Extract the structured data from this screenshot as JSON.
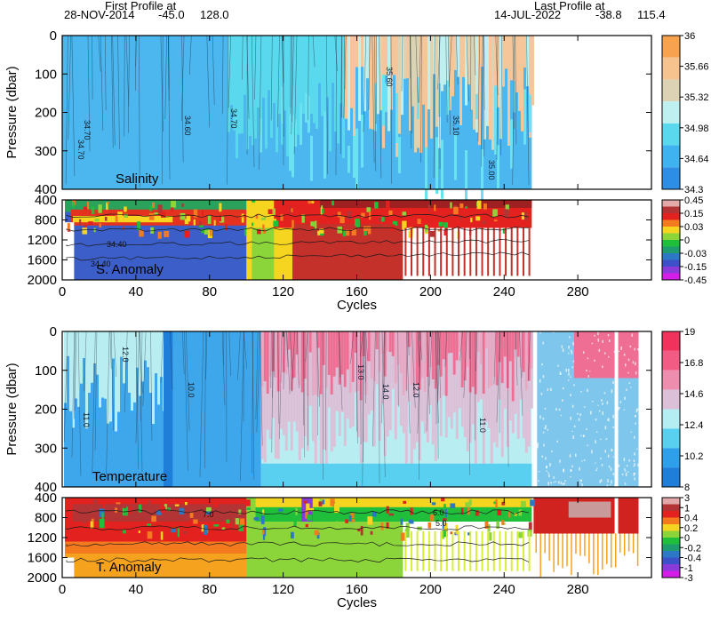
{
  "header": {
    "first_profile_label": "First Profile at",
    "first_profile_date": "28-NOV-2014",
    "first_profile_lat": "-45.0",
    "first_profile_lon": "128.0",
    "last_profile_label": "Last Profile at",
    "last_profile_date": "14-JUL-2022",
    "last_profile_lat": "-38.8",
    "last_profile_lon": "115.4"
  },
  "chart_data": [
    {
      "type": "heatmap",
      "panel_label": "Salinity",
      "ylabel": "Pressure (dbar)",
      "yticks": [
        0,
        100,
        200,
        300,
        400
      ],
      "ylim": [
        400,
        0
      ],
      "xlim": [
        0,
        320
      ],
      "cycles_with_data": [
        0,
        255
      ],
      "colorbar": {
        "labels": [
          "36",
          "35.66",
          "35.32",
          "34.98",
          "34.64",
          "34.3"
        ],
        "colors": [
          "#f7a24f",
          "#f6c28e",
          "#dcd3b4",
          "#bff0f0",
          "#5ad8ee",
          "#3fb2f0",
          "#2e8ee6"
        ]
      },
      "contour_labels": [
        "34.70",
        "34.70",
        "34.60",
        "34.70",
        "35.60",
        "35.10",
        "35.00"
      ]
    },
    {
      "type": "heatmap",
      "panel_label": "S. Anomaly",
      "yticks": [
        400,
        800,
        1200,
        1600,
        2000
      ],
      "ylim": [
        2000,
        400
      ],
      "xlim": [
        0,
        320
      ],
      "contour_labels": [
        "34.40",
        "34.40"
      ],
      "colorbar": {
        "labels": [
          "0.45",
          "0.15",
          "0.03",
          "0",
          "-0.03",
          "-0.15",
          "-0.45"
        ],
        "colors": [
          "#e3a9a9",
          "#b33434",
          "#e3221f",
          "#f47a20",
          "#f5d51f",
          "#8bd43a",
          "#1fbf3c",
          "#1f9c6d",
          "#2c78c4",
          "#3c50c8",
          "#8a3ad8",
          "#d41ee8"
        ]
      }
    },
    {
      "type": "heatmap",
      "panel_label": "Temperature",
      "ylabel": "Pressure (dbar)",
      "yticks": [
        0,
        100,
        200,
        300,
        400
      ],
      "ylim": [
        400,
        0
      ],
      "xlim": [
        0,
        320
      ],
      "cycles_with_data": [
        0,
        313
      ],
      "colorbar": {
        "labels": [
          "19",
          "16.8",
          "14.6",
          "12.4",
          "10.2",
          "8"
        ],
        "colors": [
          "#f1325c",
          "#f25c84",
          "#ee8eae",
          "#dcc0d8",
          "#b4eef2",
          "#5ad0f0",
          "#2ea0ea",
          "#1f7ed8"
        ]
      },
      "contour_labels": [
        "12.0",
        "11.0",
        "10.0",
        "13.0",
        "14.0",
        "12.0",
        "11.0"
      ]
    },
    {
      "type": "heatmap",
      "panel_label": "T. Anomaly",
      "xlabel": "Cycles",
      "yticks": [
        400,
        800,
        1200,
        1600,
        2000
      ],
      "ylim": [
        2000,
        400
      ],
      "xlim": [
        0,
        320
      ],
      "xticks": [
        0,
        40,
        80,
        120,
        160,
        200,
        240,
        280
      ],
      "contour_labels": [
        "7.0",
        "6.0",
        "5.0"
      ],
      "colorbar": {
        "labels": [
          "3",
          "1",
          "0.4",
          "0.2",
          "0",
          "-0.2",
          "-0.4",
          "-1",
          "-3"
        ],
        "colors": [
          "#e3a9a9",
          "#b33434",
          "#e3221f",
          "#f47a20",
          "#f5d51f",
          "#8bd43a",
          "#1fbf3c",
          "#1f9c6d",
          "#2c78c4",
          "#3c50c8",
          "#8a3ad8",
          "#d41ee8"
        ]
      }
    }
  ]
}
